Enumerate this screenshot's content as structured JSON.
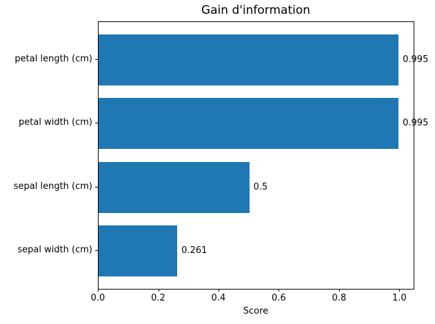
{
  "chart_data": {
    "type": "bar",
    "orientation": "horizontal",
    "title": "Gain d'information",
    "xlabel": "Score",
    "ylabel": "",
    "categories": [
      "petal length (cm)",
      "petal width (cm)",
      "sepal length (cm)",
      "sepal width (cm)"
    ],
    "values": [
      0.995,
      0.995,
      0.5,
      0.261
    ],
    "value_labels": [
      "0.995",
      "0.995",
      "0.5",
      "0.261"
    ],
    "x_tick_labels": [
      "0.0",
      "0.2",
      "0.4",
      "0.6",
      "0.8",
      "1.0"
    ],
    "x_tick_values": [
      0.0,
      0.2,
      0.4,
      0.6,
      0.8,
      1.0
    ],
    "xlim": [
      0,
      1.045
    ],
    "bar_color": "#1f77b4",
    "grid": false,
    "legend": null
  }
}
